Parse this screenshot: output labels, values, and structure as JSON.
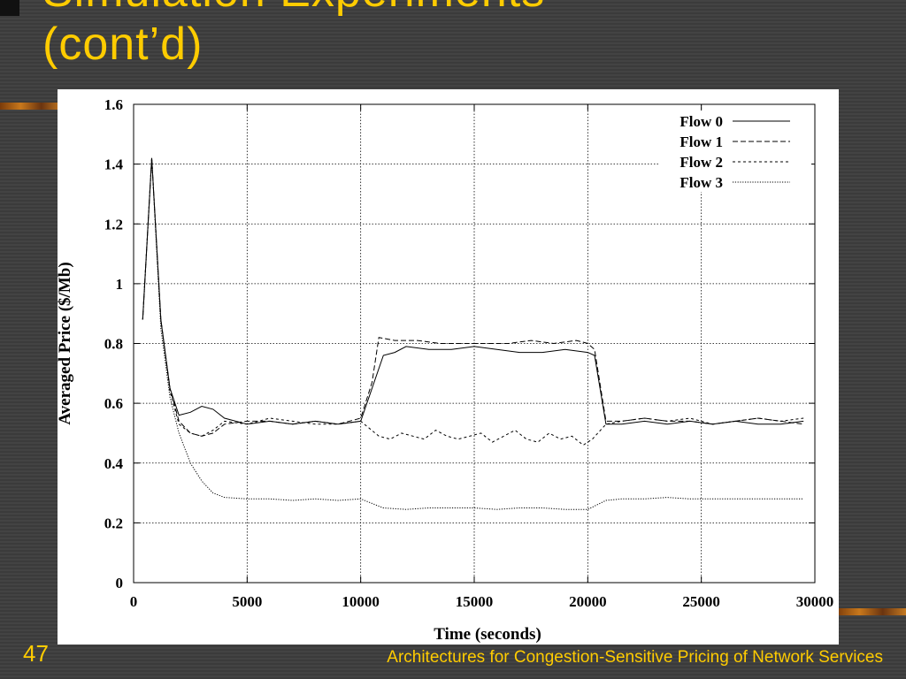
{
  "slide": {
    "title_lines": [
      "Simulation Experiments",
      "(cont’d)"
    ],
    "slide_number": "47",
    "footer": "Architectures for Congestion-Sensitive Pricing of Network Services"
  },
  "colors": {
    "background": "#3f3f3f",
    "title": "#ffcc00",
    "accent_orange": "#c8781c",
    "chart_background": "#ffffff",
    "chart_ink": "#000000"
  },
  "chart_data": {
    "type": "line",
    "title": "",
    "xlabel": "Time (seconds)",
    "ylabel": "Averaged Price ($/Mb)",
    "xlim": [
      0,
      30000
    ],
    "ylim": [
      0,
      1.6
    ],
    "xticks": [
      0,
      5000,
      10000,
      15000,
      20000,
      25000,
      30000
    ],
    "xtick_labels": [
      "0",
      "5000",
      "10000",
      "15000",
      "20000",
      "25000",
      "30000"
    ],
    "yticks": [
      0,
      0.2,
      0.4,
      0.6,
      0.8,
      1.0,
      1.2,
      1.4,
      1.6
    ],
    "ytick_labels": [
      "0",
      "0.2",
      "0.4",
      "0.6",
      "0.8",
      "1",
      "1.2",
      "1.4",
      "1.6"
    ],
    "grid": true,
    "legend_position": "top-right",
    "series": [
      {
        "name": "Flow 0",
        "dash": "solid",
        "x": [
          400,
          800,
          1200,
          1600,
          2000,
          2500,
          3000,
          3500,
          4000,
          5000,
          6000,
          7000,
          8000,
          9000,
          10000,
          10500,
          11000,
          11500,
          12000,
          13000,
          14000,
          15000,
          16000,
          17000,
          18000,
          19000,
          20000,
          20300,
          20800,
          21500,
          22500,
          23500,
          24500,
          25500,
          26500,
          27500,
          28500,
          29500
        ],
        "y": [
          0.88,
          1.42,
          0.88,
          0.65,
          0.56,
          0.57,
          0.59,
          0.58,
          0.55,
          0.53,
          0.54,
          0.53,
          0.54,
          0.53,
          0.54,
          0.65,
          0.76,
          0.77,
          0.79,
          0.78,
          0.78,
          0.79,
          0.78,
          0.77,
          0.77,
          0.78,
          0.77,
          0.76,
          0.53,
          0.53,
          0.54,
          0.53,
          0.54,
          0.53,
          0.54,
          0.53,
          0.53,
          0.54
        ]
      },
      {
        "name": "Flow 1",
        "dash": "long-dash",
        "x": [
          400,
          800,
          1200,
          1600,
          2000,
          2500,
          3000,
          3500,
          4000,
          5000,
          6000,
          7000,
          8000,
          9000,
          10000,
          10500,
          10800,
          11500,
          12500,
          13500,
          14500,
          15500,
          16500,
          17500,
          18500,
          19500,
          20000,
          20300,
          20800,
          21500,
          22500,
          23500,
          24500,
          25500,
          26500,
          27500,
          28500,
          29500
        ],
        "y": [
          0.88,
          1.42,
          0.88,
          0.65,
          0.54,
          0.5,
          0.49,
          0.5,
          0.53,
          0.54,
          0.54,
          0.53,
          0.54,
          0.53,
          0.55,
          0.67,
          0.82,
          0.81,
          0.81,
          0.8,
          0.8,
          0.8,
          0.8,
          0.81,
          0.8,
          0.81,
          0.8,
          0.78,
          0.54,
          0.54,
          0.55,
          0.54,
          0.54,
          0.53,
          0.54,
          0.55,
          0.54,
          0.53
        ]
      },
      {
        "name": "Flow 2",
        "dash": "dash",
        "x": [
          400,
          800,
          1200,
          1600,
          2000,
          2500,
          3000,
          3500,
          4000,
          5000,
          6000,
          7000,
          8000,
          9000,
          10000,
          10800,
          11300,
          11800,
          12300,
          12800,
          13300,
          13800,
          14300,
          14800,
          15300,
          15800,
          16300,
          16800,
          17300,
          17800,
          18300,
          18800,
          19300,
          19800,
          20200,
          20800,
          21500,
          22500,
          23500,
          24500,
          25500,
          26500,
          27500,
          28500,
          29500
        ],
        "y": [
          0.88,
          1.42,
          0.88,
          0.64,
          0.53,
          0.5,
          0.49,
          0.51,
          0.54,
          0.53,
          0.55,
          0.54,
          0.53,
          0.53,
          0.54,
          0.49,
          0.48,
          0.5,
          0.49,
          0.48,
          0.51,
          0.49,
          0.48,
          0.49,
          0.5,
          0.47,
          0.49,
          0.51,
          0.48,
          0.47,
          0.5,
          0.48,
          0.49,
          0.46,
          0.48,
          0.53,
          0.54,
          0.55,
          0.54,
          0.55,
          0.53,
          0.54,
          0.55,
          0.54,
          0.55
        ]
      },
      {
        "name": "Flow 3",
        "dash": "dot",
        "x": [
          400,
          800,
          1200,
          1600,
          2000,
          2500,
          3000,
          3500,
          4000,
          5000,
          6000,
          7000,
          8000,
          9000,
          10000,
          10500,
          11000,
          12000,
          13000,
          14000,
          15000,
          16000,
          17000,
          18000,
          19000,
          20000,
          20800,
          21500,
          22500,
          23500,
          24500,
          25500,
          26500,
          27500,
          28500,
          29500
        ],
        "y": [
          0.88,
          1.42,
          0.85,
          0.62,
          0.5,
          0.4,
          0.34,
          0.3,
          0.285,
          0.28,
          0.28,
          0.275,
          0.28,
          0.275,
          0.28,
          0.265,
          0.25,
          0.245,
          0.25,
          0.25,
          0.25,
          0.245,
          0.25,
          0.25,
          0.245,
          0.245,
          0.275,
          0.28,
          0.28,
          0.285,
          0.28,
          0.28,
          0.28,
          0.28,
          0.28,
          0.28
        ]
      }
    ]
  }
}
